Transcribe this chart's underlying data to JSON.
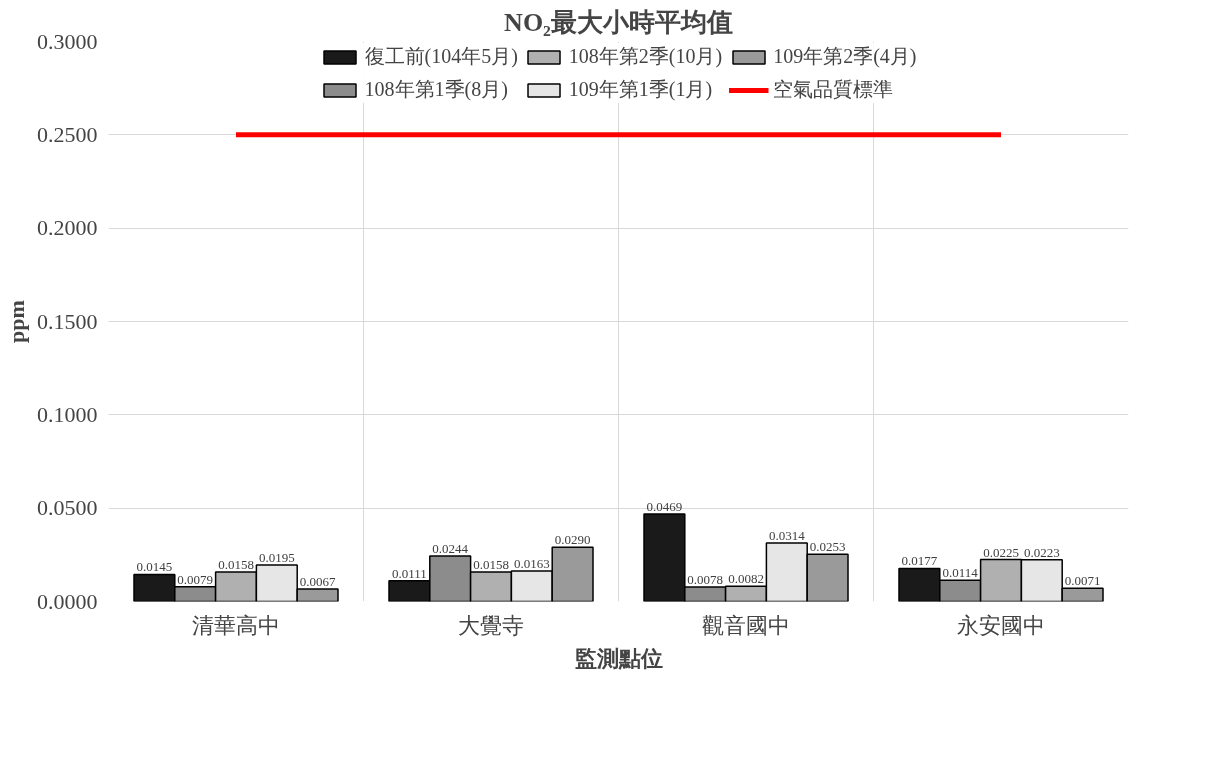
{
  "chart_data": {
    "type": "bar",
    "title": "NO₂最大小時平均值",
    "xlabel": "監測點位",
    "ylabel": "ppm",
    "categories": [
      "清華高中",
      "大覺寺",
      "觀音國中",
      "永安國中"
    ],
    "series": [
      {
        "name": "復工前(104年5月)",
        "color": "#1a1a1a",
        "values": [
          0.0145,
          0.0111,
          0.0469,
          0.0177
        ],
        "value_labels": [
          "0.0145",
          "0.0111",
          "0.0469",
          "0.0177"
        ]
      },
      {
        "name": "108年第1季(8月)",
        "color": "#8c8c8c",
        "values": [
          0.0079,
          0.0244,
          0.0078,
          0.0114
        ],
        "value_labels": [
          "0.0079",
          "0.0244",
          "0.0078",
          "0.0114"
        ]
      },
      {
        "name": "108年第2季(10月)",
        "color": "#b0b0b0",
        "values": [
          0.0158,
          0.0158,
          0.0082,
          0.0225
        ],
        "value_labels": [
          "0.0158",
          "0.0158",
          "0.0082",
          "0.0225"
        ]
      },
      {
        "name": "109年第1季(1月)",
        "color": "#e6e6e6",
        "values": [
          0.0195,
          0.0163,
          0.0314,
          0.0223
        ],
        "value_labels": [
          "0.0195",
          "0.0163",
          "0.0314",
          "0.0223"
        ]
      },
      {
        "name": "109年第2季(4月)",
        "color": "#9a9a9a",
        "values": [
          0.0067,
          0.029,
          0.0253,
          0.0071
        ],
        "value_labels": [
          "0.0067",
          "0.0290",
          "0.0253",
          "0.0071"
        ]
      },
      {
        "name": "空氣品質標準",
        "type": "line",
        "color": "#ff0000",
        "values": [
          0.25,
          0.25,
          0.25,
          0.25
        ]
      }
    ],
    "ylim": [
      0,
      0.3
    ],
    "yticks": [
      {
        "value": 0,
        "label": "0.0000"
      },
      {
        "value": 0.05,
        "label": "0.0500"
      },
      {
        "value": 0.1,
        "label": "0.1000"
      },
      {
        "value": 0.15,
        "label": "0.1500"
      },
      {
        "value": 0.2,
        "label": "0.2000"
      },
      {
        "value": 0.25,
        "label": "0.2500"
      },
      {
        "value": 0.3,
        "label": "0.3000"
      }
    ],
    "grid": true,
    "legend": "top"
  }
}
